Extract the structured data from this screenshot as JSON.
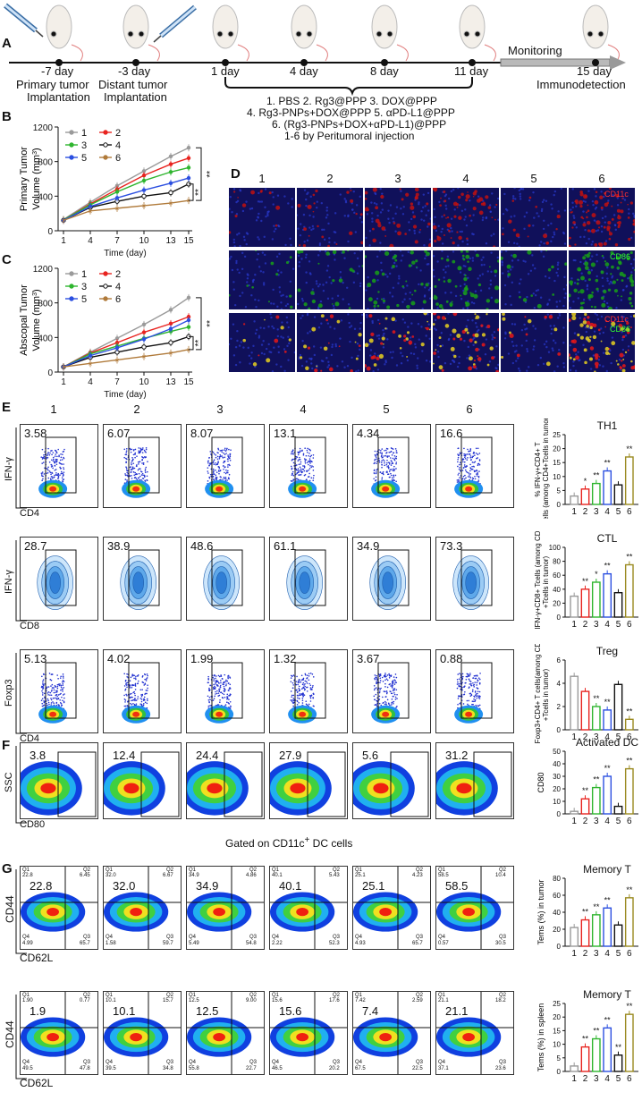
{
  "panel_A": {
    "letter": "A",
    "timeline": [
      "-7 day",
      "-3 day",
      "1 day",
      "4 day",
      "8 day",
      "11 day",
      "15 day"
    ],
    "under_labels": [
      "Primary tumor",
      "Implantation",
      "Distant tumor",
      "Implantation",
      "Immunodetection"
    ],
    "monitoring": "Monitoring",
    "treatments": [
      "1. PBS 2. Rg3@PPP 3. DOX@PPP",
      "4. Rg3-PNPs+DOX@PPP 5. αPD-L1@PPP",
      "6. (Rg3-PNPs+DOX+αPD-L1)@PPP",
      "1-6 by Peritumoral injection"
    ]
  },
  "panel_B": {
    "letter": "B",
    "chart_data": {
      "type": "line",
      "ylabel_line1": "Primary Tumor",
      "ylabel_line2": "Volume (mm",
      "ylabel_sup": "3",
      "ylabel_tail": ")",
      "xlabel": "Time (day)",
      "x": [
        1,
        4,
        7,
        10,
        13,
        15
      ],
      "xticks": [
        "1",
        "4",
        "7",
        "10",
        "13",
        "15"
      ],
      "ylim": [
        0,
        1200
      ],
      "yticks": [
        "0",
        "400",
        "800",
        "1200"
      ],
      "sig": [
        "**",
        "**"
      ],
      "series": [
        {
          "name": "1",
          "values": [
            130,
            330,
            520,
            690,
            860,
            960
          ]
        },
        {
          "name": "2",
          "values": [
            125,
            310,
            480,
            640,
            770,
            840
          ]
        },
        {
          "name": "3",
          "values": [
            125,
            300,
            450,
            580,
            680,
            730
          ]
        },
        {
          "name": "4",
          "values": [
            120,
            270,
            340,
            400,
            440,
            540
          ]
        },
        {
          "name": "5",
          "values": [
            120,
            280,
            380,
            470,
            550,
            610
          ]
        },
        {
          "name": "6",
          "values": [
            120,
            230,
            260,
            290,
            320,
            350
          ]
        }
      ]
    }
  },
  "panel_C": {
    "letter": "C",
    "chart_data": {
      "type": "line",
      "ylabel_line1": "Abscopal Tumor",
      "ylabel_line2": "Volume (mm",
      "ylabel_sup": "3",
      "ylabel_tail": ")",
      "xlabel": "Time (day)",
      "x": [
        1,
        4,
        7,
        10,
        13,
        15
      ],
      "xticks": [
        "1",
        "4",
        "7",
        "10",
        "13",
        "15"
      ],
      "ylim": [
        0,
        1200
      ],
      "yticks": [
        "0",
        "400",
        "800",
        "1200"
      ],
      "sig": [
        "**",
        "**"
      ],
      "series": [
        {
          "name": "1",
          "values": [
            60,
            230,
            390,
            550,
            720,
            860
          ]
        },
        {
          "name": "2",
          "values": [
            60,
            220,
            340,
            460,
            560,
            640
          ]
        },
        {
          "name": "3",
          "values": [
            60,
            210,
            300,
            390,
            470,
            520
          ]
        },
        {
          "name": "4",
          "values": [
            60,
            170,
            230,
            290,
            340,
            410
          ]
        },
        {
          "name": "5",
          "values": [
            60,
            190,
            280,
            380,
            500,
            600
          ]
        },
        {
          "name": "6",
          "values": [
            60,
            100,
            140,
            180,
            220,
            260
          ]
        }
      ]
    }
  },
  "panel_D": {
    "letter": "D",
    "columns": [
      "1",
      "2",
      "3",
      "4",
      "5",
      "6"
    ],
    "labels": {
      "cd11c": "CD11c",
      "cd86": "CD86"
    }
  },
  "panel_E": {
    "letter": "E",
    "columns": [
      "1",
      "2",
      "3",
      "4",
      "5",
      "6"
    ],
    "rows": [
      {
        "ylab": "IFN-γ",
        "xlab": "CD4",
        "values": [
          "3.58",
          "6.07",
          "8.07",
          "13.1",
          "4.34",
          "16.6"
        ],
        "bar_title": "TH1",
        "bar_ylab": [
          "% IFN-γ",
          "+",
          "CD4",
          "+",
          " T",
          "cells (among CD4",
          "+",
          "T",
          "cells in tumor)"
        ],
        "chart_data": {
          "type": "bar",
          "categories": [
            "1",
            "2",
            "3",
            "4",
            "5",
            "6"
          ],
          "values": [
            3,
            5.5,
            7.5,
            12,
            7,
            17
          ],
          "ylim": [
            0,
            25
          ],
          "yticks": [
            "0",
            "5",
            "10",
            "15",
            "20",
            "25"
          ],
          "sig": [
            "",
            "*",
            "**",
            "**",
            "",
            "**"
          ]
        }
      },
      {
        "ylab": "IFN-γ",
        "xlab": "CD8",
        "values": [
          "28.7",
          "38.9",
          "48.6",
          "61.1",
          "34.9",
          "73.3"
        ],
        "bar_title": "CTL",
        "bar_ylab": [
          "% IFN-γ+CD8",
          "+",
          " T",
          "cells (among CD8",
          "+",
          "T",
          "cells in tumor)"
        ],
        "chart_data": {
          "type": "bar",
          "categories": [
            "1",
            "2",
            "3",
            "4",
            "5",
            "6"
          ],
          "values": [
            30,
            40,
            50,
            62,
            35,
            75
          ],
          "ylim": [
            0,
            100
          ],
          "yticks": [
            "0",
            "20",
            "40",
            "60",
            "80",
            "100"
          ],
          "sig": [
            "",
            "**",
            "*",
            "**",
            "",
            "**"
          ]
        }
      },
      {
        "ylab": "Foxp3",
        "xlab": "CD4",
        "values": [
          "5.13",
          "4.02",
          "1.99",
          "1.32",
          "3.67",
          "0.88"
        ],
        "bar_title": "Treg",
        "bar_ylab": [
          "% Foxp3+CD4",
          "+",
          " T cells",
          "(among CD4",
          "+",
          "T",
          "cells in tumor)"
        ],
        "chart_data": {
          "type": "bar",
          "categories": [
            "1",
            "2",
            "3",
            "4",
            "5",
            "6"
          ],
          "values": [
            4.6,
            3.3,
            2.0,
            1.7,
            3.9,
            0.9
          ],
          "ylim": [
            0,
            6
          ],
          "yticks": [
            "0",
            "2",
            "4",
            "6"
          ],
          "sig": [
            "",
            "",
            "**",
            "**",
            "",
            "**"
          ]
        }
      }
    ]
  },
  "panel_F": {
    "letter": "F",
    "ylab": "SSC",
    "xlab": "CD80",
    "gated": "Gated on CD11c",
    "gated_sup": "+",
    "gated_tail": " DC cells",
    "values": [
      "3.8",
      "12.4",
      "24.4",
      "27.9",
      "5.6",
      "31.2"
    ],
    "bar_title": "Activated DC",
    "bar_ylab": "CD80",
    "chart_data": {
      "type": "bar",
      "categories": [
        "1",
        "2",
        "3",
        "4",
        "5",
        "6"
      ],
      "values": [
        2,
        12,
        21,
        30,
        6,
        36
      ],
      "ylim": [
        0,
        50
      ],
      "yticks": [
        "0",
        "10",
        "20",
        "30",
        "40",
        "50"
      ],
      "sig": [
        "",
        "**",
        "**",
        "**",
        "",
        "**"
      ]
    }
  },
  "panel_G": {
    "letter": "G",
    "ylab": "CD44",
    "xlab": "CD62L",
    "rows": [
      {
        "big": [
          "22.8",
          "32.0",
          "34.9",
          "40.1",
          "25.1",
          "58.5"
        ],
        "q1": [
          "22.8",
          "32.0",
          "34.9",
          "40.1",
          "25.1",
          "58.5"
        ],
        "q2": [
          "6.45",
          "6.67",
          "4.86",
          "5.43",
          "4.23",
          "10.4"
        ],
        "q3": [
          "65.7",
          "59.7",
          "54.8",
          "52.3",
          "65.7",
          "30.5"
        ],
        "q4": [
          "4.99",
          "1.58",
          "5.49",
          "2.22",
          "4.93",
          "0.57"
        ],
        "bar_title": "Memory T",
        "bar_ylab": "Tems (%) in tumor",
        "chart_data": {
          "type": "bar",
          "categories": [
            "1",
            "2",
            "3",
            "4",
            "5",
            "6"
          ],
          "values": [
            22,
            31,
            37,
            45,
            25,
            57
          ],
          "ylim": [
            0,
            80
          ],
          "yticks": [
            "0",
            "20",
            "40",
            "60",
            "80"
          ],
          "sig": [
            "",
            "**",
            "**",
            "**",
            "",
            "**"
          ]
        }
      },
      {
        "big": [
          "1.9",
          "10.1",
          "12.5",
          "15.6",
          "7.4",
          "21.1"
        ],
        "q1": [
          "1.90",
          "10.1",
          "12.5",
          "15.6",
          "7.42",
          "21.1"
        ],
        "q2": [
          "0.77",
          "15.7",
          "9.00",
          "17.6",
          "2.59",
          "18.2"
        ],
        "q3": [
          "47.8",
          "34.8",
          "22.7",
          "20.2",
          "22.5",
          "23.6"
        ],
        "q4": [
          "49.5",
          "39.5",
          "55.8",
          "46.5",
          "67.5",
          "37.1"
        ],
        "bar_title": "Memory T",
        "bar_ylab": "Tems (%) in spleen",
        "chart_data": {
          "type": "bar",
          "categories": [
            "1",
            "2",
            "3",
            "4",
            "5",
            "6"
          ],
          "values": [
            2,
            9,
            12,
            16,
            6,
            21
          ],
          "ylim": [
            0,
            25
          ],
          "yticks": [
            "0",
            "5",
            "10",
            "15",
            "20",
            "25"
          ],
          "sig": [
            "",
            "**",
            "**",
            "**",
            "**",
            "**"
          ]
        }
      }
    ]
  },
  "colors": {
    "g1": "#9a9a9a",
    "g2": "#e8231f",
    "g3": "#2fb52f",
    "g4": "#111111",
    "g5": "#2b4fe0",
    "g6": "#b07a3a",
    "bar6": "#9a8a20"
  }
}
